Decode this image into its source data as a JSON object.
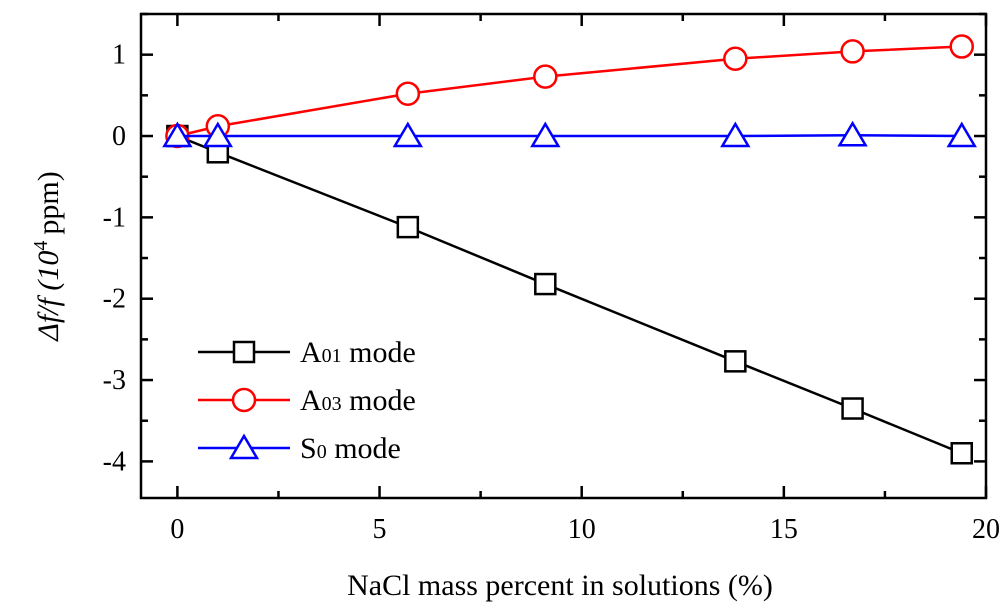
{
  "chart_data": {
    "type": "line",
    "xlabel": "NaCl mass percent in solutions (%)",
    "ylabel": "Δf/f (10⁴ ppm)",
    "ylabel_parts": {
      "main": "Δf/f (10",
      "sup": "4",
      "unit": "ppm)"
    },
    "xlim": [
      -0.9,
      20
    ],
    "ylim": [
      -4.45,
      1.5
    ],
    "xticks": [
      0,
      5,
      10,
      15,
      20
    ],
    "xtick_labels": [
      "0",
      "5",
      "10",
      "15",
      "20"
    ],
    "yticks": [
      1,
      0,
      -1,
      -2,
      -3,
      -4
    ],
    "ytick_labels": [
      "1",
      "0",
      "-1",
      "-2",
      "-3",
      "-4"
    ],
    "legend_position": "lower-left",
    "series": [
      {
        "name": "A01 mode",
        "label_main": "A",
        "label_sub": "01",
        "label_rest": " mode",
        "color": "#000000",
        "marker": "square",
        "x": [
          0,
          1,
          5.7,
          9.1,
          13.8,
          16.7,
          19.4
        ],
        "y": [
          0,
          -0.2,
          -1.12,
          -1.82,
          -2.77,
          -3.35,
          -3.9
        ]
      },
      {
        "name": "A03 mode",
        "label_main": "A",
        "label_sub": "03",
        "label_rest": " mode",
        "color": "#ff0000",
        "marker": "circle",
        "x": [
          0,
          1,
          5.7,
          9.1,
          13.8,
          16.7,
          19.4
        ],
        "y": [
          0,
          0.12,
          0.52,
          0.73,
          0.95,
          1.04,
          1.1
        ]
      },
      {
        "name": "S0 mode",
        "label_main": "S",
        "label_sub": "0",
        "label_rest": "  mode",
        "color": "#0000ff",
        "marker": "triangle",
        "x": [
          0,
          1,
          5.7,
          9.1,
          13.8,
          16.7,
          19.4
        ],
        "y": [
          0,
          0,
          0,
          0,
          0,
          0.01,
          0
        ]
      }
    ]
  }
}
